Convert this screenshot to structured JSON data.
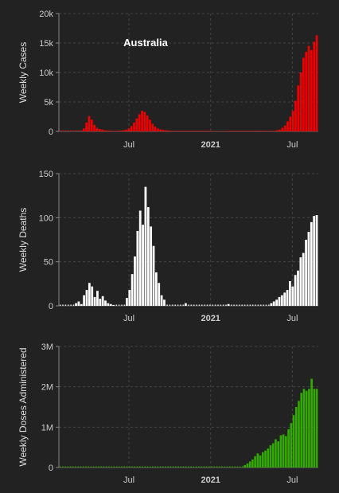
{
  "chart_data": [
    {
      "type": "bar",
      "title": "Australia",
      "ylabel": "Weekly Cases",
      "color": "#ee0000",
      "ylim": [
        0,
        20000
      ],
      "yticks": [
        0,
        5000,
        10000,
        15000,
        20000
      ],
      "ytick_labels": [
        "0",
        "5k",
        "10k",
        "15k",
        "20k"
      ],
      "xtick_labels": [
        "Jul",
        "2021",
        "Jul"
      ],
      "week_index_start": 0,
      "values": [
        0,
        0,
        0,
        0,
        0,
        0,
        0,
        0,
        0,
        500,
        1500,
        2600,
        2000,
        1100,
        600,
        400,
        300,
        200,
        150,
        120,
        100,
        100,
        120,
        150,
        200,
        300,
        500,
        900,
        1500,
        2200,
        2900,
        3500,
        3300,
        2700,
        2000,
        1300,
        800,
        500,
        350,
        250,
        200,
        150,
        120,
        100,
        100,
        100,
        100,
        100,
        100,
        100,
        100,
        100,
        100,
        100,
        100,
        100,
        100,
        100,
        50,
        50,
        50,
        50,
        50,
        80,
        100,
        100,
        100,
        100,
        100,
        100,
        100,
        100,
        100,
        100,
        100,
        100,
        100,
        100,
        100,
        100,
        100,
        100,
        200,
        300,
        600,
        1000,
        1700,
        2500,
        3500,
        5200,
        7800,
        10000,
        12500,
        13500,
        14500,
        13800,
        15200,
        16300
      ]
    },
    {
      "type": "bar",
      "title": "",
      "ylabel": "Weekly Deaths",
      "color": "#ffffff",
      "ylim": [
        0,
        150
      ],
      "yticks": [
        0,
        50,
        100,
        150
      ],
      "ytick_labels": [
        "0",
        "50",
        "100",
        "150"
      ],
      "xtick_labels": [
        "Jul",
        "2021",
        "Jul"
      ],
      "week_index_start": 0,
      "values": [
        0,
        0,
        0,
        0,
        0,
        0,
        3,
        5,
        2,
        12,
        18,
        26,
        22,
        10,
        17,
        8,
        11,
        6,
        3,
        2,
        1,
        0,
        0,
        0,
        0,
        9,
        18,
        36,
        56,
        85,
        108,
        92,
        135,
        112,
        90,
        68,
        38,
        26,
        12,
        7,
        0,
        0,
        0,
        0,
        0,
        0,
        0,
        3,
        0,
        0,
        0,
        0,
        0,
        0,
        0,
        0,
        0,
        0,
        0,
        0,
        0,
        0,
        0,
        2,
        0,
        0,
        0,
        0,
        0,
        0,
        0,
        0,
        0,
        0,
        0,
        0,
        0,
        0,
        0,
        3,
        5,
        7,
        10,
        12,
        15,
        18,
        28,
        22,
        35,
        40,
        55,
        60,
        75,
        84,
        95,
        102,
        103
      ]
    },
    {
      "type": "bar",
      "title": "",
      "ylabel": "Weekly Doses Administered",
      "color": "#33aa00",
      "ylim": [
        0,
        3000000
      ],
      "yticks": [
        0,
        1000000,
        2000000,
        3000000
      ],
      "ytick_labels": [
        "0",
        "1M",
        "2M",
        "3M"
      ],
      "xtick_labels": [
        "Jul",
        "2021",
        "Jul"
      ],
      "week_index_start": 0,
      "values": [
        0,
        0,
        0,
        0,
        0,
        0,
        0,
        0,
        0,
        0,
        0,
        0,
        0,
        0,
        0,
        0,
        0,
        0,
        0,
        0,
        0,
        0,
        0,
        0,
        0,
        0,
        0,
        0,
        0,
        0,
        0,
        0,
        0,
        0,
        0,
        0,
        0,
        0,
        0,
        0,
        0,
        0,
        0,
        0,
        0,
        0,
        0,
        0,
        0,
        0,
        0,
        0,
        0,
        0,
        0,
        0,
        0,
        0,
        0,
        0,
        0,
        0,
        0,
        0,
        0,
        0,
        0,
        0,
        0,
        0,
        0,
        0,
        60000,
        100000,
        150000,
        200000,
        280000,
        350000,
        300000,
        380000,
        420000,
        470000,
        550000,
        600000,
        700000,
        650000,
        800000,
        820000,
        780000,
        950000,
        1100000,
        1300000,
        1500000,
        1650000,
        1850000,
        1950000,
        1900000,
        1950000,
        2200000,
        1950000,
        1950000
      ]
    }
  ]
}
